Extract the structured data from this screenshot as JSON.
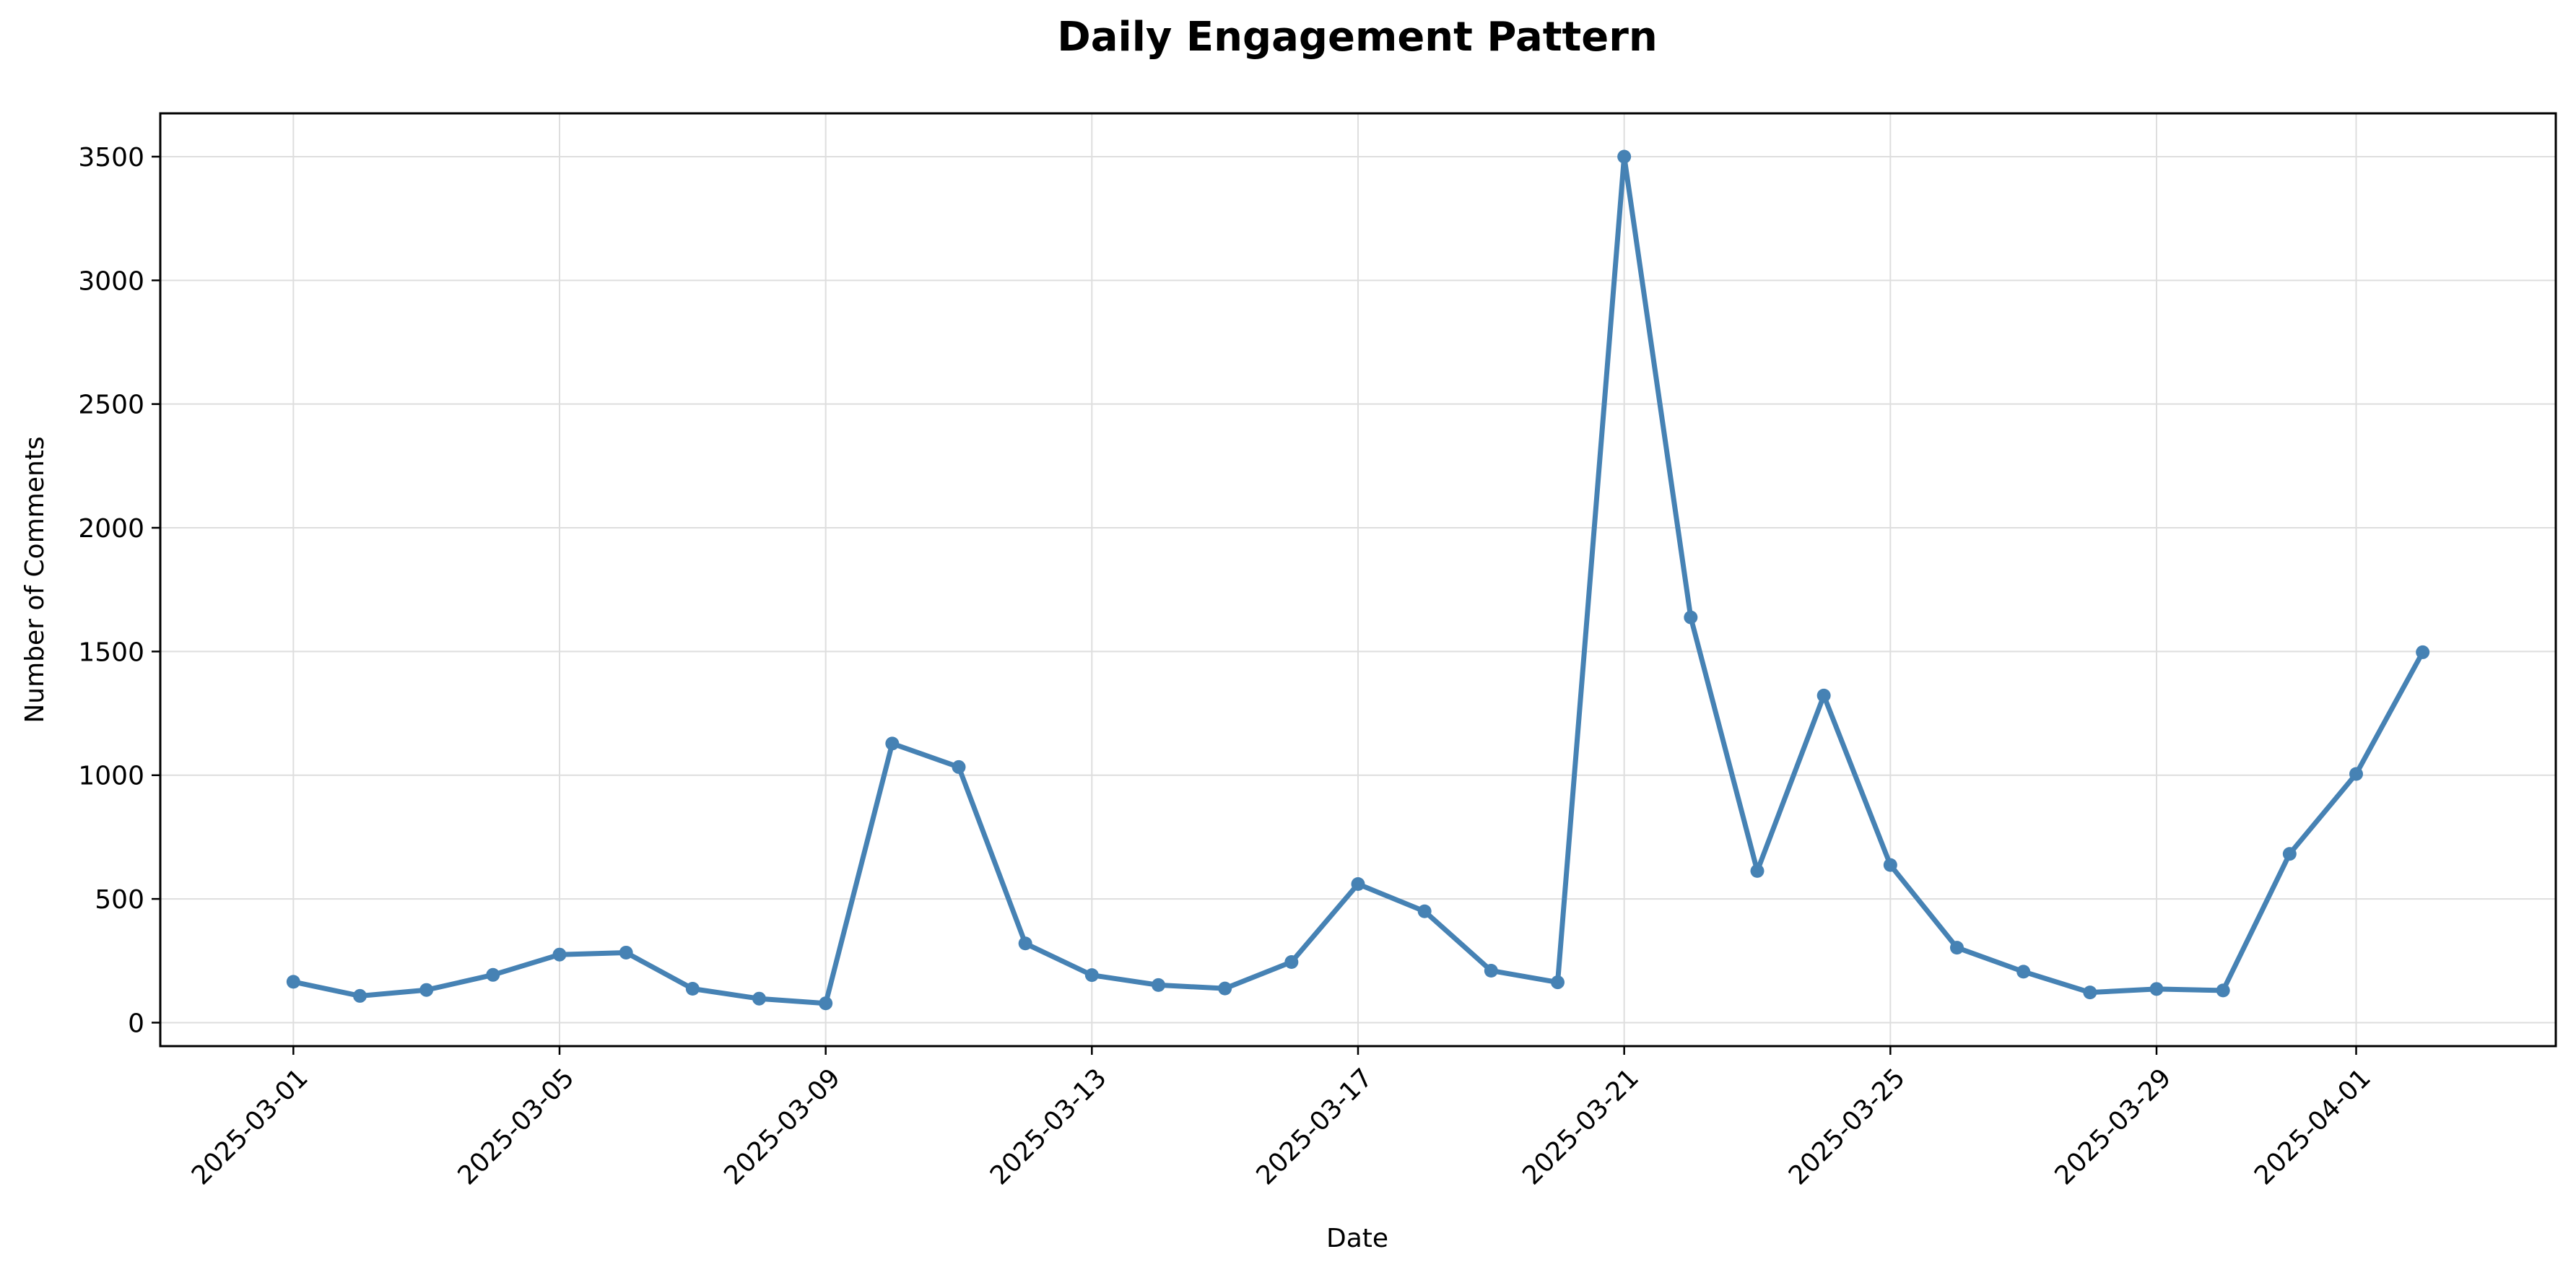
{
  "chart_data": {
    "type": "line",
    "title": "Daily Engagement Pattern",
    "xlabel": "Date",
    "ylabel": "Number of Comments",
    "x": [
      "2025-03-01",
      "2025-03-02",
      "2025-03-03",
      "2025-03-04",
      "2025-03-05",
      "2025-03-06",
      "2025-03-07",
      "2025-03-08",
      "2025-03-09",
      "2025-03-10",
      "2025-03-11",
      "2025-03-12",
      "2025-03-13",
      "2025-03-14",
      "2025-03-15",
      "2025-03-16",
      "2025-03-17",
      "2025-03-18",
      "2025-03-19",
      "2025-03-20",
      "2025-03-21",
      "2025-03-22",
      "2025-03-23",
      "2025-03-24",
      "2025-03-25",
      "2025-03-26",
      "2025-03-27",
      "2025-03-28",
      "2025-03-29",
      "2025-03-30",
      "2025-03-31",
      "2025-04-01",
      "2025-04-02"
    ],
    "series": [
      {
        "color": "#4682b4",
        "values": [
          165,
          108,
          132,
          193,
          275,
          283,
          137,
          97,
          78,
          1128,
          1033,
          320,
          192,
          152,
          138,
          245,
          560,
          450,
          210,
          163,
          3500,
          1638,
          613,
          1322,
          637,
          303,
          206,
          122,
          136,
          130,
          682,
          1005,
          1497
        ]
      }
    ],
    "x_ticks": [
      "2025-03-01",
      "2025-03-05",
      "2025-03-09",
      "2025-03-13",
      "2025-03-17",
      "2025-03-21",
      "2025-03-25",
      "2025-03-29",
      "2025-04-01"
    ],
    "y_ticks": [
      0,
      500,
      1000,
      1500,
      2000,
      2500,
      3000,
      3500
    ],
    "xlim": [
      "2025-02-27",
      "2025-04-04"
    ],
    "ylim": [
      -95,
      3675
    ],
    "grid": true,
    "legend": "none"
  }
}
